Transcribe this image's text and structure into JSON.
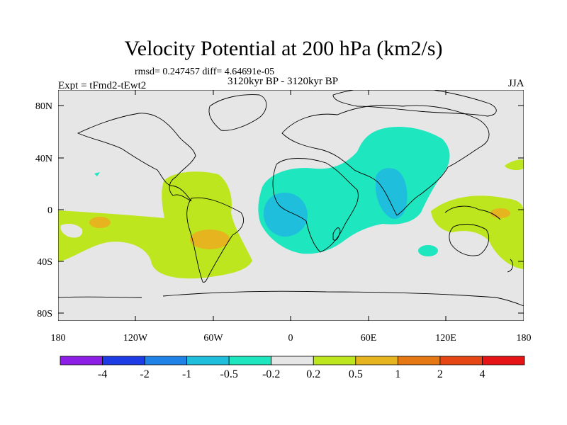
{
  "title": "Velocity Potential at 200 hPa (km2/s)",
  "stats": "rmsd= 0.247457 diff= 4.64691e-05",
  "experiment": "Expt = tFmd2-tEwt2",
  "period": "3120kyr BP - 3120kyr BP",
  "season": "JJA",
  "lat_labels": [
    "80N",
    "40N",
    "0",
    "40S",
    "80S"
  ],
  "lon_labels": [
    "180",
    "120W",
    "60W",
    "0",
    "60E",
    "120E",
    "180"
  ],
  "legend": {
    "labels": [
      "-4",
      "-2",
      "-1",
      "-0.5",
      "-0.2",
      "0.2",
      "0.5",
      "1",
      "2",
      "4"
    ],
    "colors": [
      "#8c1ee6",
      "#1e3ce6",
      "#1e82e6",
      "#1ebedc",
      "#1ee6be",
      "#e6e6e6",
      "#bee61e",
      "#e6b41e",
      "#e67814",
      "#e64614",
      "#e61414"
    ]
  },
  "colors": {
    "ocean_bg": "#e6e6e6",
    "positive_low": "#bee61e",
    "positive_mid": "#e6b41e",
    "negative_low": "#1ee6be",
    "negative_mid": "#1ebedc"
  }
}
